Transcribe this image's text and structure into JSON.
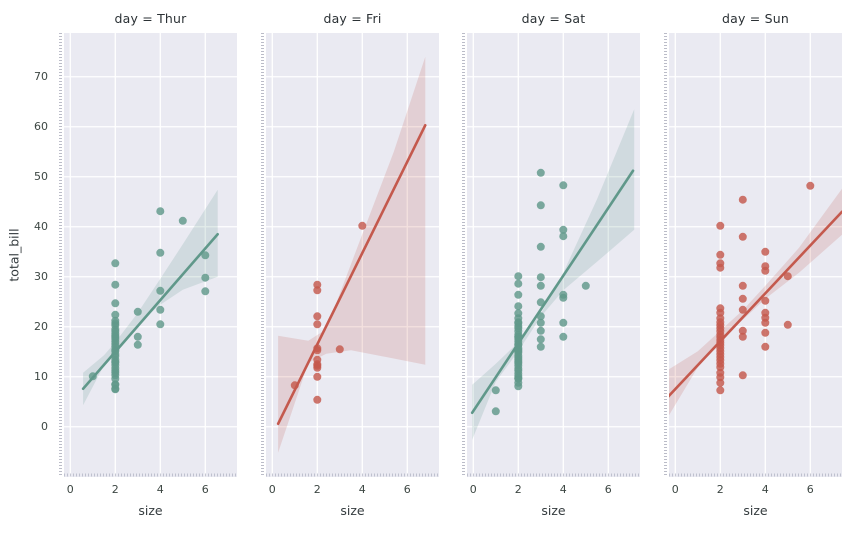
{
  "figure": {
    "background": "#ffffff",
    "axes_background": "#eaeaf2",
    "grid_color": "#ffffff",
    "minor_tick_color": "#a8aabc",
    "tick_label_color": "#3d4743",
    "title_color": "#2b3135"
  },
  "chart_data": {
    "type": "scatter",
    "description": "Faceted regression plot (lmplot) of total_bill vs size by day, with linear fit and confidence band per facet",
    "facet_variable": "day",
    "xlabel": "size",
    "ylabel": "total_bill",
    "x_ticks": [
      0,
      2,
      4,
      6
    ],
    "y_ticks": [
      0,
      10,
      20,
      30,
      40,
      50,
      60,
      70
    ],
    "xlim": [
      -0.28,
      7.41
    ],
    "ylim": [
      -10.05,
      78.75
    ],
    "grid": true,
    "legend": "none",
    "facets": [
      {
        "title": "day = Thur",
        "color": "#60988a",
        "band_opacity": 0.18,
        "points": [
          [
            1,
            10.1
          ],
          [
            2,
            7.5
          ],
          [
            2,
            7.6
          ],
          [
            2,
            8.4
          ],
          [
            2,
            8.5
          ],
          [
            2,
            9.6
          ],
          [
            2,
            10.3
          ],
          [
            2,
            10.8
          ],
          [
            2,
            11.2
          ],
          [
            2,
            11.7
          ],
          [
            2,
            12.3
          ],
          [
            2,
            12.8
          ],
          [
            2,
            13.0
          ],
          [
            2,
            13.4
          ],
          [
            2,
            14.1
          ],
          [
            2,
            14.5
          ],
          [
            2,
            15.1
          ],
          [
            2,
            15.4
          ],
          [
            2,
            16.0
          ],
          [
            2,
            16.5
          ],
          [
            2,
            17.0
          ],
          [
            2,
            17.5
          ],
          [
            2,
            17.9
          ],
          [
            2,
            18.2
          ],
          [
            2,
            18.6
          ],
          [
            2,
            19.1
          ],
          [
            2,
            19.5
          ],
          [
            2,
            20.3
          ],
          [
            2,
            20.7
          ],
          [
            2,
            21.2
          ],
          [
            2,
            22.4
          ],
          [
            2,
            24.7
          ],
          [
            2,
            28.4
          ],
          [
            2,
            32.7
          ],
          [
            3,
            23.0
          ],
          [
            3,
            18.0
          ],
          [
            3,
            16.4
          ],
          [
            4,
            43.1
          ],
          [
            4,
            34.8
          ],
          [
            4,
            27.2
          ],
          [
            4,
            23.4
          ],
          [
            4,
            20.5
          ],
          [
            5,
            41.2
          ],
          [
            6,
            34.3
          ],
          [
            6,
            29.8
          ],
          [
            6,
            27.1
          ]
        ],
        "regression_line": {
          "x": [
            0.57,
            6.55
          ],
          "y": [
            7.6,
            38.5
          ]
        },
        "ci_band": [
          [
            0.57,
            10.8
          ],
          [
            1.5,
            14.3
          ],
          [
            2,
            16.9
          ],
          [
            3,
            22.8
          ],
          [
            4,
            29.6
          ],
          [
            5,
            36.5
          ],
          [
            6.55,
            47.4
          ],
          [
            6.55,
            30.0
          ],
          [
            5,
            27.4
          ],
          [
            4,
            24.4
          ],
          [
            3,
            20.6
          ],
          [
            2,
            14.9
          ],
          [
            1.5,
            12.3
          ],
          [
            0.57,
            4.3
          ]
        ]
      },
      {
        "title": "day = Fri",
        "color": "#c4594d",
        "band_opacity": 0.18,
        "points": [
          [
            1,
            8.3
          ],
          [
            2,
            28.4
          ],
          [
            2,
            27.3
          ],
          [
            2,
            22.1
          ],
          [
            2,
            20.5
          ],
          [
            2,
            15.7
          ],
          [
            2,
            15.3
          ],
          [
            2,
            13.4
          ],
          [
            2,
            12.5
          ],
          [
            2,
            12.2
          ],
          [
            2,
            11.8
          ],
          [
            2,
            10.0
          ],
          [
            2,
            5.4
          ],
          [
            3,
            15.5
          ],
          [
            4,
            40.2
          ]
        ],
        "regression_line": {
          "x": [
            0.26,
            6.8
          ],
          "y": [
            0.6,
            60.3
          ]
        },
        "ci_band": [
          [
            0.26,
            18.2
          ],
          [
            1.6,
            17.2
          ],
          [
            2.4,
            19.5
          ],
          [
            4,
            38.5
          ],
          [
            5.4,
            55.0
          ],
          [
            6.8,
            74.0
          ],
          [
            6.8,
            12.4
          ],
          [
            5,
            14.0
          ],
          [
            3.5,
            15.3
          ],
          [
            2.4,
            14.6
          ],
          [
            1.6,
            12.8
          ],
          [
            0.26,
            -5.2
          ]
        ]
      },
      {
        "title": "day = Sat",
        "color": "#60988a",
        "band_opacity": 0.18,
        "points": [
          [
            1,
            3.1
          ],
          [
            1,
            7.3
          ],
          [
            2,
            30.1
          ],
          [
            2,
            28.6
          ],
          [
            2,
            26.4
          ],
          [
            2,
            24.1
          ],
          [
            2,
            22.7
          ],
          [
            2,
            21.7
          ],
          [
            2,
            20.9
          ],
          [
            2,
            20.7
          ],
          [
            2,
            20.1
          ],
          [
            2,
            19.7
          ],
          [
            2,
            19.1
          ],
          [
            2,
            18.4
          ],
          [
            2,
            18.0
          ],
          [
            2,
            17.9
          ],
          [
            2,
            17.5
          ],
          [
            2,
            17.0
          ],
          [
            2,
            16.5
          ],
          [
            2,
            16.3
          ],
          [
            2,
            15.7
          ],
          [
            2,
            15.4
          ],
          [
            2,
            15.1
          ],
          [
            2,
            14.8
          ],
          [
            2,
            14.2
          ],
          [
            2,
            13.8
          ],
          [
            2,
            13.4
          ],
          [
            2,
            13.0
          ],
          [
            2,
            12.7
          ],
          [
            2,
            12.2
          ],
          [
            2,
            11.6
          ],
          [
            2,
            11.2
          ],
          [
            2,
            10.6
          ],
          [
            2,
            10.1
          ],
          [
            2,
            9.7
          ],
          [
            2,
            9.6
          ],
          [
            2,
            8.8
          ],
          [
            2,
            8.1
          ],
          [
            3,
            50.8
          ],
          [
            3,
            44.3
          ],
          [
            3,
            36.0
          ],
          [
            3,
            29.9
          ],
          [
            3,
            28.2
          ],
          [
            3,
            24.9
          ],
          [
            3,
            22.1
          ],
          [
            3,
            20.8
          ],
          [
            3,
            19.2
          ],
          [
            3,
            17.5
          ],
          [
            3,
            16.0
          ],
          [
            4,
            48.3
          ],
          [
            4,
            39.4
          ],
          [
            4,
            38.1
          ],
          [
            4,
            26.4
          ],
          [
            4,
            25.8
          ],
          [
            4,
            20.8
          ],
          [
            4,
            18.0
          ],
          [
            5,
            28.2
          ]
        ],
        "regression_line": {
          "x": [
            -0.05,
            7.1
          ],
          "y": [
            2.8,
            51.2
          ]
        },
        "ci_band": [
          [
            -0.05,
            8.4
          ],
          [
            1,
            12.6
          ],
          [
            2,
            16.9
          ],
          [
            3,
            22.6
          ],
          [
            4,
            30.8
          ],
          [
            5.5,
            45.5
          ],
          [
            7.15,
            63.5
          ],
          [
            7.15,
            39.4
          ],
          [
            5.5,
            33.0
          ],
          [
            4,
            27.3
          ],
          [
            3,
            22.0
          ],
          [
            2,
            15.1
          ],
          [
            1,
            9.0
          ],
          [
            -0.05,
            -2.6
          ]
        ]
      },
      {
        "title": "day = Sun",
        "color": "#c4594d",
        "band_opacity": 0.18,
        "points": [
          [
            2,
            40.2
          ],
          [
            2,
            34.4
          ],
          [
            2,
            32.7
          ],
          [
            2,
            31.8
          ],
          [
            2,
            23.7
          ],
          [
            2,
            22.8
          ],
          [
            2,
            21.7
          ],
          [
            2,
            20.9
          ],
          [
            2,
            20.3
          ],
          [
            2,
            19.7
          ],
          [
            2,
            19.1
          ],
          [
            2,
            18.4
          ],
          [
            2,
            17.9
          ],
          [
            2,
            17.3
          ],
          [
            2,
            16.8
          ],
          [
            2,
            16.3
          ],
          [
            2,
            15.7
          ],
          [
            2,
            15.1
          ],
          [
            2,
            14.5
          ],
          [
            2,
            13.9
          ],
          [
            2,
            13.3
          ],
          [
            2,
            12.6
          ],
          [
            2,
            11.9
          ],
          [
            2,
            10.8
          ],
          [
            2,
            9.9
          ],
          [
            2,
            8.8
          ],
          [
            2,
            7.3
          ],
          [
            3,
            45.4
          ],
          [
            3,
            38.0
          ],
          [
            3,
            28.2
          ],
          [
            3,
            25.6
          ],
          [
            3,
            23.4
          ],
          [
            3,
            19.2
          ],
          [
            3,
            18.0
          ],
          [
            3,
            10.3
          ],
          [
            4,
            35.0
          ],
          [
            4,
            32.1
          ],
          [
            4,
            31.2
          ],
          [
            4,
            25.2
          ],
          [
            4,
            22.8
          ],
          [
            4,
            21.8
          ],
          [
            4,
            20.8
          ],
          [
            4,
            18.8
          ],
          [
            4,
            16.0
          ],
          [
            5,
            30.1
          ],
          [
            5,
            20.4
          ],
          [
            6,
            48.2
          ]
        ],
        "regression_line": {
          "x": [
            -0.32,
            7.41
          ],
          "y": [
            6.0,
            43.0
          ]
        },
        "ci_band": [
          [
            -0.32,
            11.4
          ],
          [
            1,
            15.1
          ],
          [
            2,
            19.2
          ],
          [
            3,
            23.3
          ],
          [
            4,
            28.2
          ],
          [
            5.5,
            35.8
          ],
          [
            7.41,
            47.6
          ],
          [
            7.41,
            38.4
          ],
          [
            5.5,
            30.8
          ],
          [
            4,
            25.6
          ],
          [
            3,
            21.4
          ],
          [
            2,
            16.9
          ],
          [
            1,
            11.9
          ],
          [
            -0.32,
            2.0
          ]
        ]
      }
    ]
  }
}
